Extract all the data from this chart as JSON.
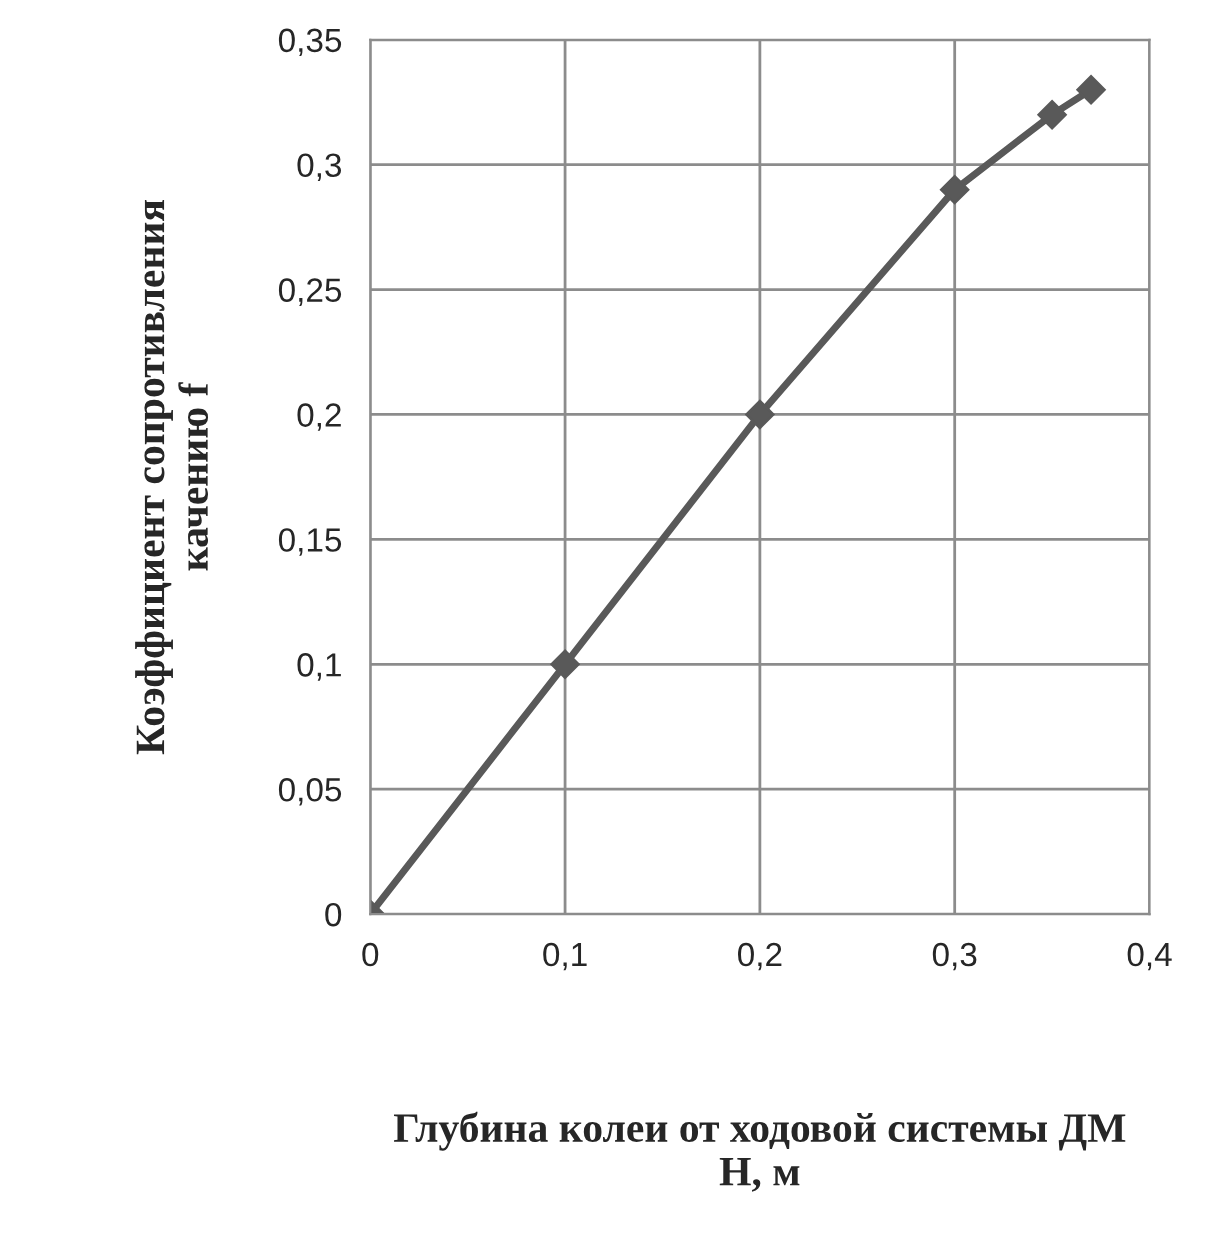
{
  "chart_data": {
    "type": "line",
    "xlabel": "Глубина колеи от ходовой системы ДМ\nH, м",
    "ylabel": "Коэффициент сопротивления\nкачению f",
    "x": [
      0,
      0.1,
      0.2,
      0.3,
      0.35,
      0.37
    ],
    "series": [
      {
        "color": "#595959",
        "values": [
          0,
          0.1,
          0.2,
          0.29,
          0.32,
          0.33
        ]
      }
    ],
    "xlim": [
      0,
      0.4
    ],
    "ylim": [
      0,
      0.35
    ],
    "xticks": [
      0,
      {
        "value": 0.1,
        "label": "0,1"
      },
      {
        "value": 0.2,
        "label": "0,2"
      },
      {
        "value": 0.3,
        "label": "0,3"
      },
      {
        "value": 0.4,
        "label": "0,4"
      }
    ],
    "yticks": [
      0,
      {
        "value": 0.05,
        "label": "0,05"
      },
      {
        "value": 0.1,
        "label": "0,1"
      },
      {
        "value": 0.15,
        "label": "0,15"
      },
      {
        "value": 0.2,
        "label": "0,2"
      },
      {
        "value": 0.25,
        "label": "0,25"
      },
      {
        "value": 0.3,
        "label": "0,3"
      },
      {
        "value": 0.35,
        "label": "0,35"
      }
    ],
    "grid": true,
    "legend": false,
    "marker": "diamond",
    "line_style": "solid"
  }
}
